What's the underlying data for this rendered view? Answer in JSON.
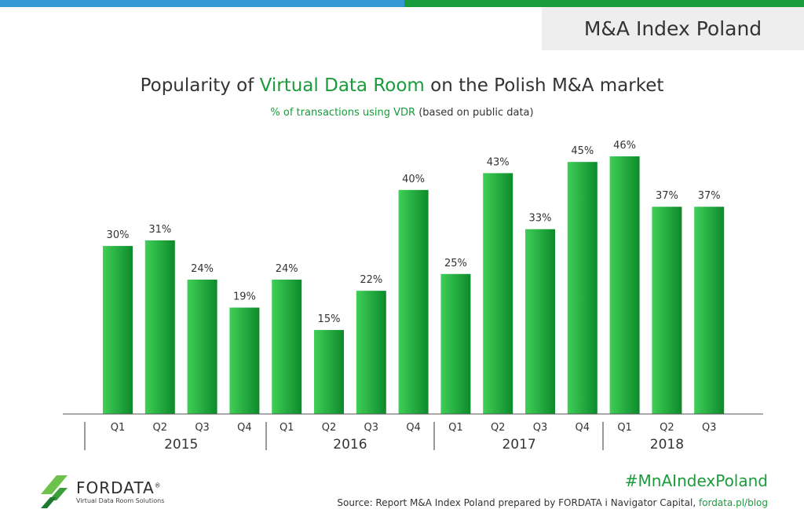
{
  "header": {
    "badge": "M&A Index Poland"
  },
  "title": {
    "prefix": "Popularity of ",
    "highlight": "Virtual Data Room",
    "suffix": " on the Polish M&A market"
  },
  "subtitle": {
    "highlight": "% of transactions using VDR",
    "rest": " (based on public data)"
  },
  "colors": {
    "bar_light": "#3fcf57",
    "bar_dark": "#0d8a2b",
    "accent_green": "#1a9b3c",
    "accent_blue": "#3598d4",
    "header_bg": "#eeeeee"
  },
  "chart_data": {
    "type": "bar",
    "categories": [
      "Q1",
      "Q2",
      "Q3",
      "Q4",
      "Q1",
      "Q2",
      "Q3",
      "Q4",
      "Q1",
      "Q2",
      "Q3",
      "Q4",
      "Q1",
      "Q2",
      "Q3"
    ],
    "groups": [
      {
        "label": "2015",
        "count": 4
      },
      {
        "label": "2016",
        "count": 4
      },
      {
        "label": "2017",
        "count": 4
      },
      {
        "label": "2018",
        "count": 3
      }
    ],
    "values": [
      30,
      31,
      24,
      19,
      24,
      15,
      22,
      40,
      25,
      43,
      33,
      45,
      46,
      37,
      37
    ],
    "data_labels": [
      "30%",
      "31%",
      "24%",
      "19%",
      "24%",
      "15%",
      "22%",
      "40%",
      "25%",
      "43%",
      "33%",
      "45%",
      "46%",
      "37%",
      "37%"
    ],
    "ylim": [
      0,
      50
    ],
    "grid": false,
    "legend": "none",
    "xlabel": "",
    "ylabel": ""
  },
  "brand": {
    "name": "FORDATA",
    "registered": "®",
    "tagline": "Virtual Data Room Solutions"
  },
  "footer": {
    "hashtag": "#MnAIndexPoland",
    "source_text": "Source: Report M&A Index Poland prepared by FORDATA i Navigator Capital, ",
    "source_link": "fordata.pl/blog"
  }
}
